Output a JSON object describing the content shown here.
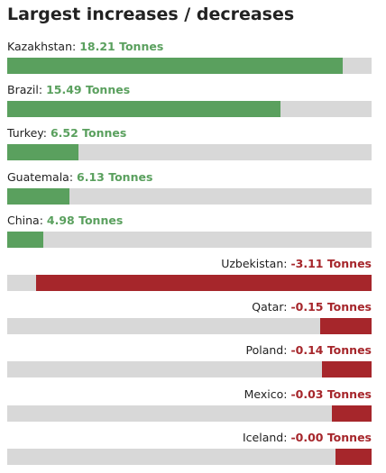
{
  "chart_data": {
    "type": "bar",
    "orientation": "horizontal",
    "title": "Largest increases / decreases",
    "unit": "Tonnes",
    "colors": {
      "increase": "#5aa05e",
      "decrease": "#a6262b",
      "track": "#d8d8d8"
    },
    "categories": [
      "Kazakhstan",
      "Brazil",
      "Turkey",
      "Guatemala",
      "China",
      "Uzbekistan",
      "Qatar",
      "Poland",
      "Mexico",
      "Iceland"
    ],
    "values": [
      18.21,
      15.49,
      6.52,
      6.13,
      4.98,
      -3.11,
      -0.15,
      -0.14,
      -0.03,
      -0.0
    ],
    "value_labels": [
      "18.21 Tonnes",
      "15.49 Tonnes",
      "6.52 Tonnes",
      "6.13 Tonnes",
      "4.98 Tonnes",
      "-3.11 Tonnes",
      "-0.15 Tonnes",
      "-0.14 Tonnes",
      "-0.03 Tonnes",
      "-0.00 Tonnes"
    ],
    "bar_fill_fractions": [
      0.92,
      0.75,
      0.195,
      0.17,
      0.1,
      0.92,
      0.14,
      0.135,
      0.11,
      0.1
    ]
  }
}
